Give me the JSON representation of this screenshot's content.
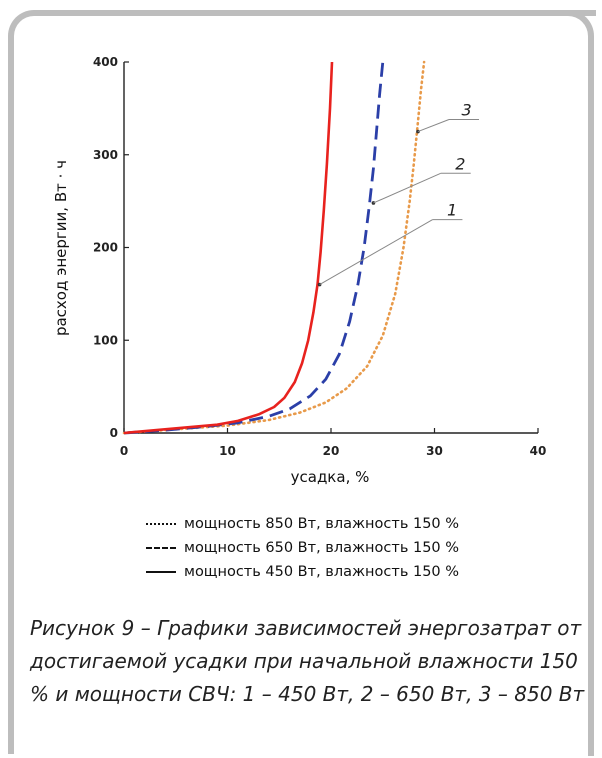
{
  "chart_data": {
    "type": "line",
    "xlabel": "усадка, %",
    "ylabel": "расход энергии, Вт · ч",
    "xlim": [
      0,
      40
    ],
    "ylim": [
      0,
      400
    ],
    "xticks": [
      "0",
      "10",
      "20",
      "30",
      "40"
    ],
    "yticks": [
      "0",
      "100",
      "200",
      "300",
      "400"
    ],
    "grid": false,
    "series": [
      {
        "name": "мощность 450 Вт, влажность 150 %",
        "label": "1",
        "color": "#e8221e",
        "style": "solid",
        "x": [
          0,
          3,
          6,
          9,
          11,
          13,
          14.5,
          15.5,
          16.5,
          17.2,
          17.8,
          18.3,
          18.7,
          19.0,
          19.3,
          19.6,
          19.9,
          20.1
        ],
        "y": [
          0,
          3,
          6,
          9,
          13,
          20,
          28,
          38,
          55,
          75,
          100,
          130,
          160,
          195,
          240,
          290,
          350,
          400
        ]
      },
      {
        "name": "мощность 650 Вт, влажность 150 %",
        "label": "2",
        "color": "#2b3fa8",
        "style": "dashed",
        "x": [
          0,
          4,
          8,
          11,
          14,
          16,
          18,
          19.5,
          20.8,
          21.8,
          22.6,
          23.2,
          23.7,
          24.1,
          24.4,
          24.7,
          25.0
        ],
        "y": [
          0,
          3,
          7,
          11,
          18,
          26,
          40,
          58,
          85,
          120,
          160,
          200,
          245,
          285,
          325,
          365,
          400
        ]
      },
      {
        "name": "мощность 850 Вт, влажность 150 %",
        "label": "3",
        "color": "#e89a4a",
        "style": "dotted",
        "x": [
          0,
          5,
          10,
          14,
          17,
          19.5,
          21.5,
          23.5,
          25,
          26.2,
          27.0,
          27.6,
          28.0,
          28.4,
          28.7,
          29.0
        ],
        "y": [
          0,
          4,
          8,
          14,
          22,
          33,
          48,
          72,
          105,
          150,
          200,
          250,
          290,
          335,
          370,
          400
        ]
      }
    ],
    "legend": [
      {
        "style": "dotted",
        "text": "мощность 850 Вт, влажность 150 %"
      },
      {
        "style": "dashed",
        "text": "мощность 650 Вт, влажность 150 %"
      },
      {
        "style": "solid",
        "text": "мощность 450 Вт, влажность 150 %"
      }
    ]
  },
  "caption": "Рисунок 9 – Графики зависимостей энергозатрат от достигаемой усадки при начальной влажности 150 % и мощности СВЧ: 1 – 450 Вт, 2 – 650 Вт, 3 – 850 Вт"
}
